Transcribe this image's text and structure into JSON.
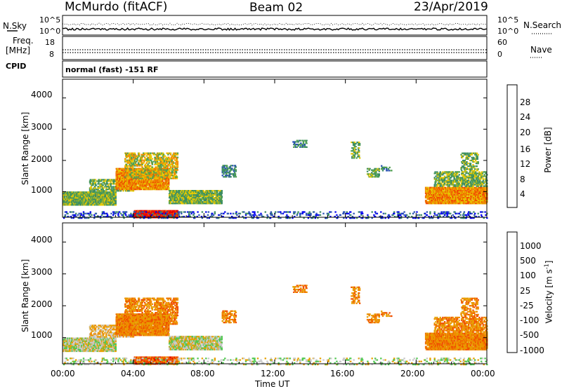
{
  "header": {
    "station": "McMurdo (fitACF)",
    "beam": "Beam 02",
    "date": "23/Apr/2019"
  },
  "left_labels": {
    "nsky": "N.Sky",
    "freq": "Freq.",
    "mhz": "[MHz]",
    "cpid": "CPID"
  },
  "right_labels": {
    "nsearch": "N.Search",
    "nave": "Nave"
  },
  "cpid_text": "normal (fast) -151 RF",
  "colors": {
    "power": [
      "#0000ee",
      "#2850b4",
      "#3c8c64",
      "#50a050",
      "#e6c800",
      "#f08c00",
      "#f05000",
      "#e60000"
    ],
    "velocity": [
      "#1e32c8",
      "#2855b4",
      "#3c825a",
      "#50c850",
      "#c8c8c8",
      "#e6a000",
      "#f08c00",
      "#f05000",
      "#e60000"
    ],
    "ground_scatter": "#b4b4b4"
  },
  "chart_data": [
    {
      "type": "line",
      "name": "noise-panel",
      "ylabel_left": "N.Sky",
      "ylabel_right": "N.Search",
      "left_ticks": [
        "10^5",
        "10^0"
      ],
      "right_ticks": [
        "10^5",
        "10^0"
      ]
    },
    {
      "type": "line",
      "name": "frequency-panel",
      "left_ticks": [
        "18",
        "8"
      ],
      "right_ticks": [
        "60",
        "0"
      ]
    },
    {
      "type": "heatmap",
      "name": "power-panel",
      "ylabel": "Slant Range [km]",
      "yticks": [
        "4000",
        "3000",
        "2000",
        "1000"
      ],
      "ylim": [
        180,
        4600
      ],
      "xlim": [
        0,
        24
      ],
      "colorbar_label": "Power [dB]",
      "colorbar_ticks": [
        "28",
        "24",
        "20",
        "16",
        "12",
        "8",
        "4"
      ],
      "colorbar_range": [
        0,
        32
      ]
    },
    {
      "type": "heatmap",
      "name": "velocity-panel",
      "ylabel": "Slant Range [km]",
      "yticks": [
        "4000",
        "3000",
        "2000",
        "1000"
      ],
      "ylim": [
        180,
        4600
      ],
      "xlim": [
        0,
        24
      ],
      "colorbar_label": "Velocity [m s",
      "colorbar_label_sup": "-1",
      "colorbar_label_end": "]",
      "colorbar_ticks": [
        "1000",
        "500",
        "100",
        "25",
        "-25",
        "-100",
        "-500",
        "-1000"
      ]
    }
  ],
  "xaxis": {
    "ticks": [
      "00:00",
      "04:00",
      "08:00",
      "12:00",
      "16:00",
      "20:00",
      "00:00"
    ],
    "label": "Time UT"
  }
}
